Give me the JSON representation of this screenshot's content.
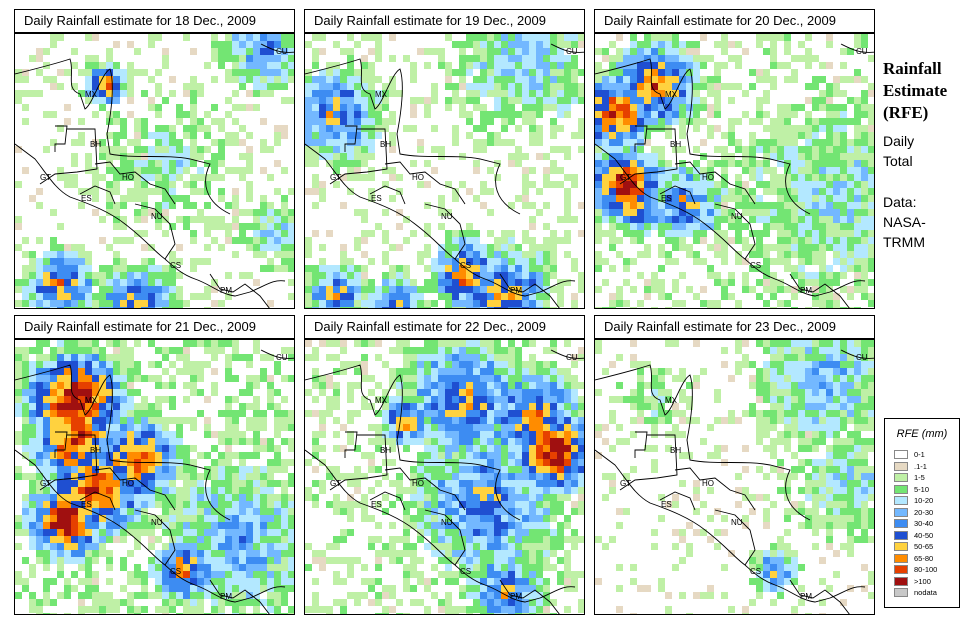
{
  "panels": [
    {
      "title": "Daily Rainfall estimate for  18 Dec., 2009",
      "seed": 18,
      "intensity": 1
    },
    {
      "title": "Daily Rainfall estimate for  19 Dec., 2009",
      "seed": 19,
      "intensity": 2
    },
    {
      "title": "Daily Rainfall estimate for  20 Dec., 2009",
      "seed": 20,
      "intensity": 3
    },
    {
      "title": "Daily Rainfall estimate for  21 Dec., 2009",
      "seed": 21,
      "intensity": 4
    },
    {
      "title": "Daily Rainfall estimate for  22 Dec., 2009",
      "seed": 22,
      "intensity": 3
    },
    {
      "title": "Daily Rainfall estimate for  23 Dec., 2009",
      "seed": 23,
      "intensity": 1
    }
  ],
  "country_labels": [
    "MX",
    "BH",
    "GT",
    "HO",
    "ES",
    "NU",
    "CS",
    "PM",
    "CU"
  ],
  "side": {
    "title_lines": [
      "Rainfall",
      "Estimate",
      "(RFE)"
    ],
    "subtitle_lines": [
      "Daily",
      "Total"
    ],
    "data_lines": [
      "Data:",
      "NASA-",
      "TRMM"
    ]
  },
  "legend": {
    "title": "RFE (mm)",
    "items": [
      {
        "label": "0-1",
        "color": "#ffffff"
      },
      {
        "label": ".1-1",
        "color": "#e6d9c3"
      },
      {
        "label": "1-5",
        "color": "#bff0a6"
      },
      {
        "label": "5-10",
        "color": "#73e573"
      },
      {
        "label": "10-20",
        "color": "#b3e8ff"
      },
      {
        "label": "20-30",
        "color": "#73b8ff"
      },
      {
        "label": "30-40",
        "color": "#3d8cf2"
      },
      {
        "label": "40-50",
        "color": "#1f4fd1"
      },
      {
        "label": "50-65",
        "color": "#ffd23f"
      },
      {
        "label": "65-80",
        "color": "#ff8c00"
      },
      {
        "label": "80-100",
        "color": "#e64000"
      },
      {
        "label": ">100",
        "color": "#a01010"
      },
      {
        "label": "nodata",
        "color": "#c8c8c8"
      }
    ]
  }
}
